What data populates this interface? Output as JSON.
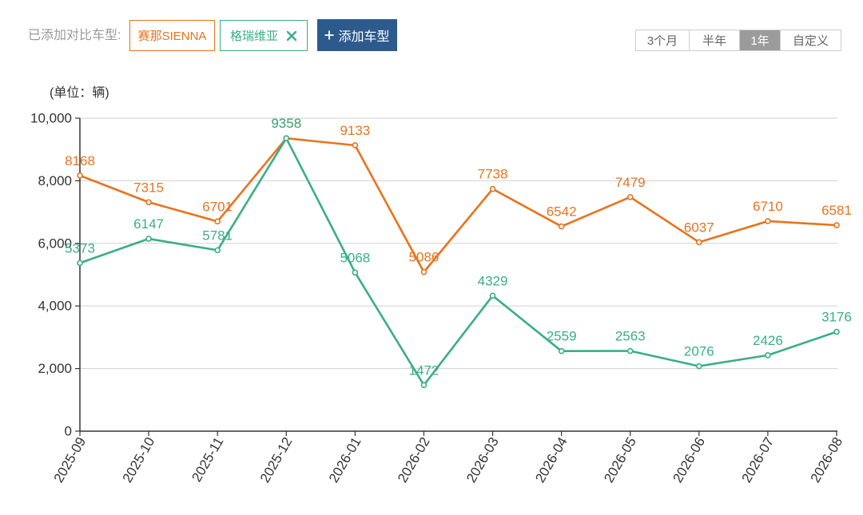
{
  "toolbar": {
    "compare_label": "已添加对比车型:",
    "remove_icon": "close-icon",
    "add_icon": "plus-icon",
    "add_label": "添加车型",
    "add_button_color": "#2d5a8c"
  },
  "range_selector": {
    "options": [
      "3个月",
      "半年",
      "1年",
      "自定义"
    ],
    "selected_index": 2,
    "selected_bg": "#9b9b9b"
  },
  "chart_data": {
    "type": "line",
    "ylabel": "(单位：辆)",
    "categories": [
      "2025-09",
      "2025-10",
      "2025-11",
      "2025-12",
      "2026-01",
      "2026-02",
      "2026-03",
      "2026-04",
      "2026-05",
      "2026-06",
      "2026-07",
      "2026-08"
    ],
    "ylim": [
      0,
      10000
    ],
    "yticks": [
      0,
      2000,
      4000,
      6000,
      8000,
      10000
    ],
    "ytick_labels": [
      "0",
      "2,000",
      "4,000",
      "6,000",
      "8,000",
      "10,000"
    ],
    "grid": true,
    "data_labels": true,
    "legend": "top-left",
    "series": [
      {
        "name": "赛那SIENNA",
        "color": "#e8731e",
        "values": [
          8168,
          7315,
          6701,
          9358,
          9133,
          5086,
          7738,
          6542,
          7479,
          6037,
          6710,
          6581
        ]
      },
      {
        "name": "格瑞维亚",
        "color": "#3aae86",
        "values": [
          5373,
          6147,
          5781,
          9358,
          5068,
          1472,
          4329,
          2559,
          2563,
          2076,
          2426,
          3176
        ]
      }
    ]
  }
}
